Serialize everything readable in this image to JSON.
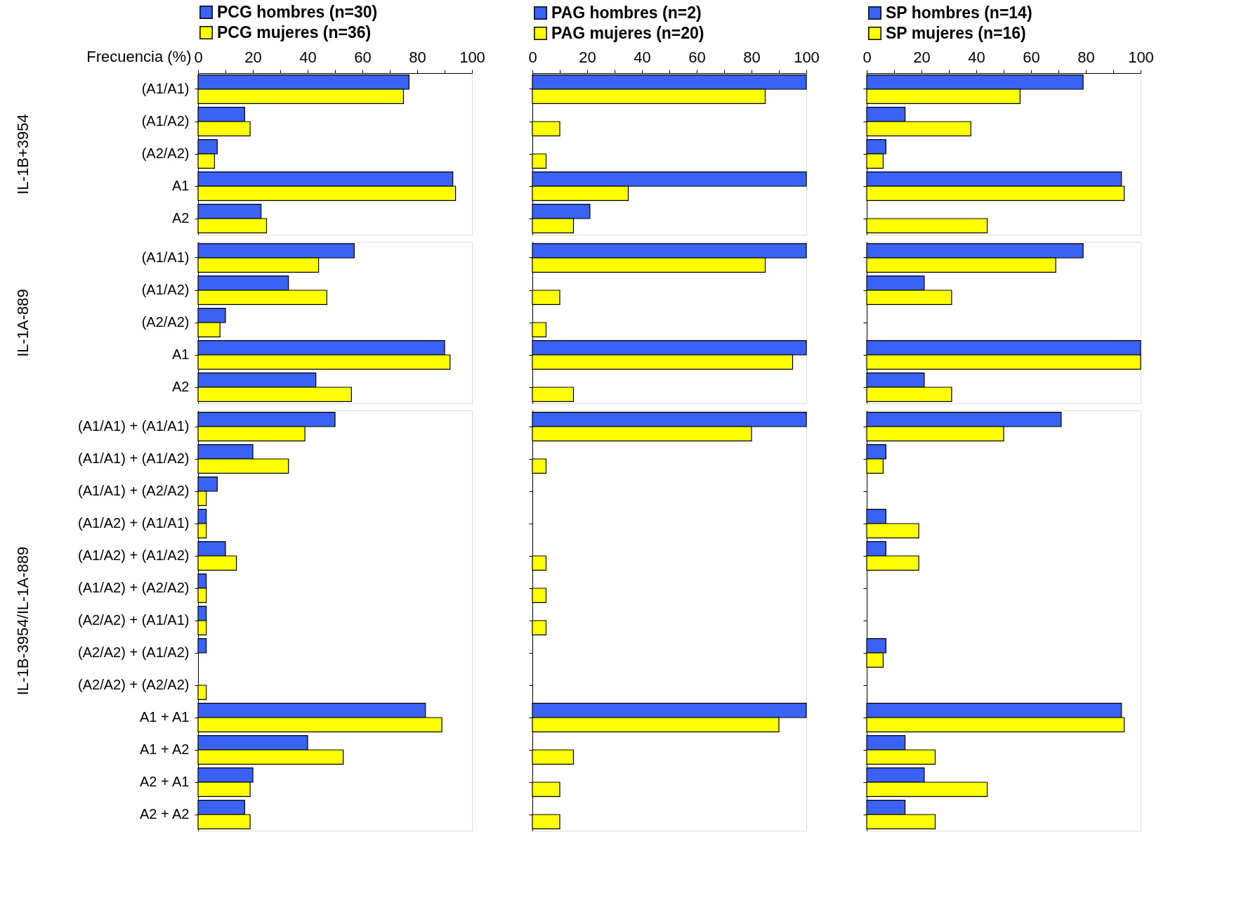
{
  "chart_data": [
    {
      "type": "bar",
      "orientation": "horizontal",
      "xlabel": "Frecuencia (%)",
      "ylabel": "IL-1B+3954",
      "legend": "top",
      "tick_labels": true,
      "categories": [
        "(A1/A1)",
        "(A1/A2)",
        "(A2/A2)",
        "A1",
        "A2"
      ],
      "series": [
        {
          "name": "PCG hombres (n=30)",
          "color": "#3a62f5",
          "values": [
            77,
            17,
            7,
            93,
            23
          ]
        },
        {
          "name": "PCG mujeres (n=36)",
          "color": "#ffff00",
          "values": [
            75,
            19,
            6,
            94,
            25
          ]
        }
      ],
      "xlim": [
        0,
        100
      ],
      "xticks": [
        0,
        {
          "value": 10,
          "label": null
        },
        20,
        {
          "value": 30,
          "label": null
        },
        40,
        {
          "value": 50,
          "label": null
        },
        60,
        {
          "value": 70,
          "label": null
        },
        80,
        {
          "value": 90,
          "label": null
        },
        100
      ]
    },
    {
      "type": "bar",
      "orientation": "horizontal",
      "ylabel": "IL-1A-889",
      "tick_labels": "y",
      "categories": [
        "(A1/A1)",
        "(A1/A2)",
        "(A2/A2)",
        "A1",
        "A2"
      ],
      "series": [
        {
          "color": "#3a62f5",
          "values": [
            57,
            33,
            10,
            90,
            43
          ]
        },
        {
          "color": "#ffff00",
          "values": [
            44,
            47,
            8,
            92,
            56
          ]
        }
      ],
      "xlim": [
        0,
        100
      ]
    },
    {
      "type": "bar",
      "orientation": "horizontal",
      "ylabel": "IL-1B-3954/IL-1A-889",
      "tick_labels": "y",
      "categories": [
        "(A1/A1) + (A1/A1)",
        "(A1/A1) + (A1/A2)",
        "(A1/A1) + (A2/A2)",
        "(A1/A2) + (A1/A1)",
        "(A1/A2) + (A1/A2)",
        "(A1/A2) + (A2/A2)",
        "(A2/A2) + (A1/A1)",
        "(A2/A2) + (A1/A2)",
        "(A2/A2) + (A2/A2)",
        "A1 + A1",
        "A1 + A2",
        "A2 + A1",
        "A2 + A2"
      ],
      "series": [
        {
          "color": "#3a62f5",
          "values": [
            50,
            20,
            7,
            3,
            10,
            3,
            3,
            3,
            null,
            83,
            40,
            20,
            17
          ]
        },
        {
          "color": "#ffff00",
          "values": [
            39,
            33,
            3,
            3,
            14,
            3,
            3,
            null,
            3,
            89,
            53,
            19,
            19
          ]
        }
      ],
      "xlim": [
        0,
        100
      ]
    },
    {
      "type": "bar",
      "orientation": "horizontal",
      "legend": "top",
      "tick_labels": "x",
      "categories": [
        null,
        null,
        null,
        null,
        null
      ],
      "series": [
        {
          "name": "PAG hombres (n=2)",
          "color": "#3a62f5",
          "values": [
            100,
            null,
            null,
            100,
            21
          ]
        },
        {
          "name": "PAG mujeres (n=20)",
          "color": "#ffff00",
          "values": [
            85,
            10,
            5,
            35,
            15
          ]
        }
      ],
      "xlim": [
        0,
        100
      ],
      "xticks": [
        0,
        {
          "value": 10,
          "label": null
        },
        20,
        {
          "value": 30,
          "label": null
        },
        40,
        {
          "value": 50,
          "label": null
        },
        60,
        {
          "value": 70,
          "label": null
        },
        80,
        {
          "value": 90,
          "label": null
        },
        100
      ]
    },
    {
      "type": "bar",
      "orientation": "horizontal",
      "tick_labels": false,
      "categories": [
        null,
        null,
        null,
        null,
        null
      ],
      "series": [
        {
          "color": "#3a62f5",
          "values": [
            100,
            null,
            null,
            100,
            null
          ]
        },
        {
          "color": "#ffff00",
          "values": [
            85,
            10,
            5,
            95,
            15
          ]
        }
      ],
      "xlim": [
        0,
        100
      ]
    },
    {
      "type": "bar",
      "orientation": "horizontal",
      "tick_labels": false,
      "categories": [
        null,
        null,
        null,
        null,
        null,
        null,
        null,
        null,
        null,
        null,
        null,
        null,
        null
      ],
      "series": [
        {
          "color": "#3a62f5",
          "values": [
            100,
            null,
            null,
            null,
            null,
            null,
            null,
            null,
            null,
            100,
            null,
            null,
            null
          ]
        },
        {
          "color": "#ffff00",
          "values": [
            80,
            5,
            null,
            null,
            5,
            5,
            5,
            null,
            null,
            90,
            15,
            10,
            10
          ]
        }
      ],
      "xlim": [
        0,
        100
      ]
    },
    {
      "type": "bar",
      "orientation": "horizontal",
      "legend": "top",
      "tick_labels": "x",
      "categories": [
        null,
        null,
        null,
        null,
        null
      ],
      "series": [
        {
          "name": "SP hombres (n=14)",
          "color": "#3a62f5",
          "values": [
            79,
            14,
            7,
            93,
            null
          ]
        },
        {
          "name": "SP mujeres (n=16)",
          "color": "#ffff00",
          "values": [
            56,
            38,
            6,
            94,
            44
          ]
        }
      ],
      "xlim": [
        0,
        100
      ],
      "xticks": [
        0,
        {
          "value": 10,
          "label": null
        },
        20,
        {
          "value": 30,
          "label": null
        },
        40,
        {
          "value": 50,
          "label": null
        },
        60,
        {
          "value": 70,
          "label": null
        },
        80,
        {
          "value": 90,
          "label": null
        },
        100
      ]
    },
    {
      "type": "bar",
      "orientation": "horizontal",
      "tick_labels": false,
      "categories": [
        null,
        null,
        null,
        null,
        null
      ],
      "series": [
        {
          "color": "#3a62f5",
          "values": [
            79,
            21,
            null,
            100,
            21
          ]
        },
        {
          "color": "#ffff00",
          "values": [
            69,
            31,
            null,
            100,
            31
          ]
        }
      ],
      "xlim": [
        0,
        100
      ]
    },
    {
      "type": "bar",
      "orientation": "horizontal",
      "tick_labels": false,
      "categories": [
        null,
        null,
        null,
        null,
        null,
        null,
        null,
        null,
        null,
        null,
        null,
        null,
        null
      ],
      "series": [
        {
          "color": "#3a62f5",
          "values": [
            71,
            7,
            null,
            7,
            7,
            null,
            null,
            7,
            null,
            93,
            14,
            21,
            14
          ]
        },
        {
          "color": "#ffff00",
          "values": [
            50,
            6,
            null,
            19,
            19,
            null,
            null,
            6,
            null,
            94,
            25,
            44,
            25
          ]
        }
      ],
      "xlim": [
        0,
        100
      ]
    }
  ]
}
